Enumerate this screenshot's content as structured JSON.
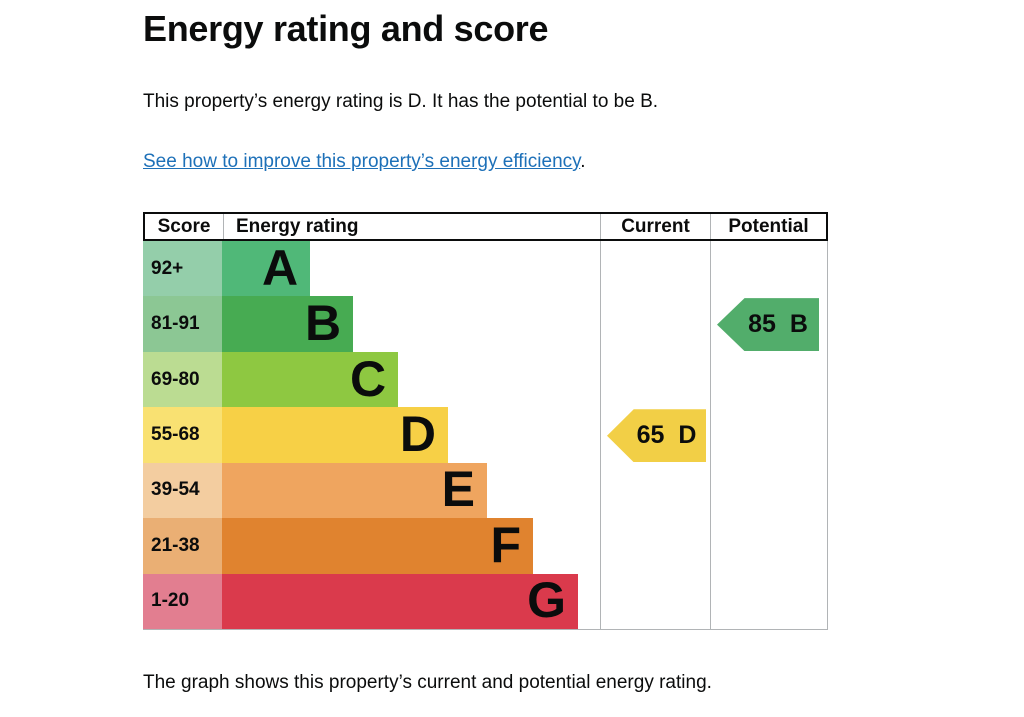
{
  "header": {
    "title": "Energy rating and score",
    "summary": "This property’s energy rating is D. It has the potential to be B.",
    "link": "See how to improve this property’s energy efficiency",
    "link_suffix": "."
  },
  "caption": "The graph shows this property’s current and potential energy rating.",
  "chart_data": {
    "type": "bar",
    "title": "Energy rating and score",
    "orientation": "horizontal",
    "grid": false,
    "columns": {
      "score": "Score",
      "rating": "Energy rating",
      "current": "Current",
      "potential": "Potential"
    },
    "bands": [
      {
        "range": "92+",
        "letter": "A",
        "bar_color": "#50b878",
        "score_color": "#94ceaa",
        "bar_width_pct": 23.3
      },
      {
        "range": "81-91",
        "letter": "B",
        "bar_color": "#47ab52",
        "score_color": "#8cc794",
        "bar_width_pct": 34.7
      },
      {
        "range": "69-80",
        "letter": "C",
        "bar_color": "#8ec841",
        "score_color": "#bbdc92",
        "bar_width_pct": 46.6
      },
      {
        "range": "55-68",
        "letter": "D",
        "bar_color": "#f7d046",
        "score_color": "#f9e172",
        "bar_width_pct": 59.8
      },
      {
        "range": "39-54",
        "letter": "E",
        "bar_color": "#efa55f",
        "score_color": "#f3cda0",
        "bar_width_pct": 70.1
      },
      {
        "range": "21-38",
        "letter": "F",
        "bar_color": "#e0832f",
        "score_color": "#eaaf74",
        "bar_width_pct": 82.3
      },
      {
        "range": "1-20",
        "letter": "G",
        "bar_color": "#da3a4c",
        "score_color": "#e27e90",
        "bar_width_pct": 94.2
      }
    ],
    "current": {
      "value": "65",
      "letter": "D",
      "color": "#f2cf46"
    },
    "potential": {
      "value": "85",
      "letter": "B",
      "color": "#52ad6b"
    },
    "notes": "Left-pointing arrows mark the current and potential scores in their band rows"
  }
}
